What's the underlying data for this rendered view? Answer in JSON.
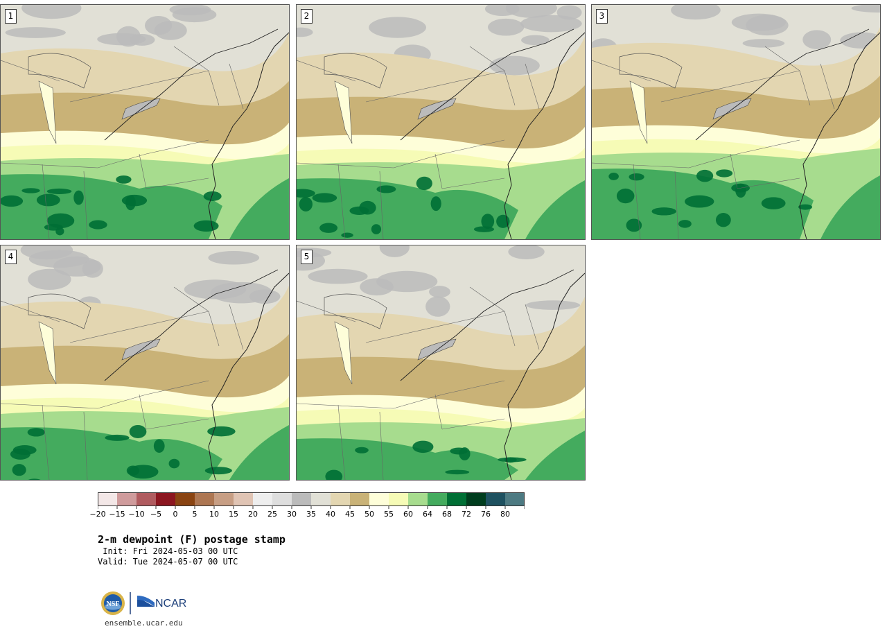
{
  "panels": [
    {
      "label": "1"
    },
    {
      "label": "2"
    },
    {
      "label": "3"
    },
    {
      "label": "4"
    },
    {
      "label": "5"
    }
  ],
  "colorbar": {
    "colors": [
      "#f3e7e7",
      "#cf9b9c",
      "#b05b5f",
      "#8c1620",
      "#8a4412",
      "#ad7652",
      "#c79e84",
      "#e0c4b4",
      "#eeeeee",
      "#dedede",
      "#bbbbbb",
      "#e1e0d6",
      "#e3d6b1",
      "#c9b277",
      "#fefed9",
      "#f6fbb6",
      "#a7dc8e",
      "#44ab5e",
      "#006f35",
      "#003d1e",
      "#1e5160",
      "#4d7a82"
    ],
    "tick_labels": [
      "−20",
      "−15",
      "−10",
      "−5",
      "0",
      "5",
      "10",
      "15",
      "20",
      "25",
      "30",
      "35",
      "40",
      "45",
      "50",
      "55",
      "60",
      "64",
      "68",
      "72",
      "76",
      "80"
    ]
  },
  "title": "2-m dewpoint (F) postage stamp",
  "init_line": " Init: Fri 2024-05-03 00 UTC",
  "valid_line": "Valid: Tue 2024-05-07 00 UTC",
  "logo": {
    "nsf_text": "NSF",
    "ncar_text": "NCAR"
  },
  "site": "ensemble.ucar.edu"
}
